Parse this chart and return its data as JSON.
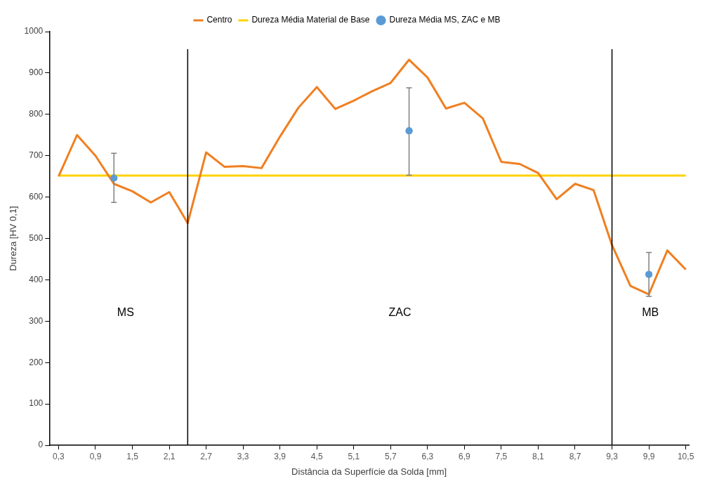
{
  "chart_data": {
    "type": "line",
    "xlabel": "Distância da Superfície da Solda [mm]",
    "ylabel": "Dureza [HV 0,1]",
    "xlim": [
      0.15,
      10.55
    ],
    "xticks": [
      {
        "value": 0.3,
        "label": "0,3"
      },
      {
        "value": 0.9,
        "label": "0,9"
      },
      {
        "value": 1.5,
        "label": "1,5"
      },
      {
        "value": 2.1,
        "label": "2,1"
      },
      {
        "value": 2.7,
        "label": "2,7"
      },
      {
        "value": 3.3,
        "label": "3,3"
      },
      {
        "value": 3.9,
        "label": "3,9"
      },
      {
        "value": 4.5,
        "label": "4,5"
      },
      {
        "value": 5.1,
        "label": "5,1"
      },
      {
        "value": 5.7,
        "label": "5,7"
      },
      {
        "value": 6.3,
        "label": "6,3"
      },
      {
        "value": 6.9,
        "label": "6,9"
      },
      {
        "value": 7.5,
        "label": "7,5"
      },
      {
        "value": 8.1,
        "label": "8,1"
      },
      {
        "value": 8.7,
        "label": "8,7"
      },
      {
        "value": 9.3,
        "label": "9,3"
      },
      {
        "value": 9.9,
        "label": "9,9"
      },
      {
        "value": 10.5,
        "label": "10,5"
      }
    ],
    "ylim": [
      0,
      1000
    ],
    "yticks": [
      0,
      100,
      200,
      300,
      400,
      500,
      600,
      700,
      800,
      900,
      1000
    ],
    "grid": false,
    "legend": "top",
    "series": [
      {
        "name": "Centro",
        "color": "#f07f21",
        "marker": "none",
        "x": [
          0.3,
          0.6,
          0.9,
          1.2,
          1.5,
          1.8,
          2.1,
          2.4,
          2.7,
          3.0,
          3.3,
          3.6,
          3.9,
          4.2,
          4.5,
          4.8,
          5.1,
          5.4,
          5.7,
          6.0,
          6.3,
          6.6,
          6.9,
          7.2,
          7.5,
          7.8,
          8.1,
          8.4,
          8.7,
          9.0,
          9.3,
          9.6,
          9.9,
          10.2,
          10.5
        ],
        "values": [
          650,
          750,
          700,
          632,
          614,
          587,
          612,
          537,
          708,
          673,
          675,
          670,
          746,
          816,
          866,
          813,
          833,
          856,
          876,
          932,
          889,
          814,
          828,
          790,
          685,
          680,
          658,
          595,
          632,
          617,
          484,
          385,
          365,
          471,
          425
        ]
      },
      {
        "name": "Dureza Média Material de Base",
        "color": "#ffd200",
        "marker": "none",
        "x": [
          0.3,
          10.5
        ],
        "values": [
          652,
          652
        ]
      },
      {
        "name": "Dureza Média MS, ZAC e MB",
        "type": "scatter",
        "color": "#5b9bd5",
        "marker": "circle",
        "x": [
          1.2,
          6.0,
          9.9
        ],
        "values": [
          646,
          760,
          413
        ],
        "errors": [
          [
            587,
            706
          ],
          [
            653,
            864
          ],
          [
            360,
            466
          ]
        ]
      }
    ],
    "ref_lines": [
      {
        "axis": "x",
        "value": 2.4,
        "color": "#000000"
      },
      {
        "axis": "x",
        "value": 9.3,
        "color": "#000000"
      }
    ],
    "annotations": [
      "MS",
      "ZAC",
      "MB"
    ]
  }
}
